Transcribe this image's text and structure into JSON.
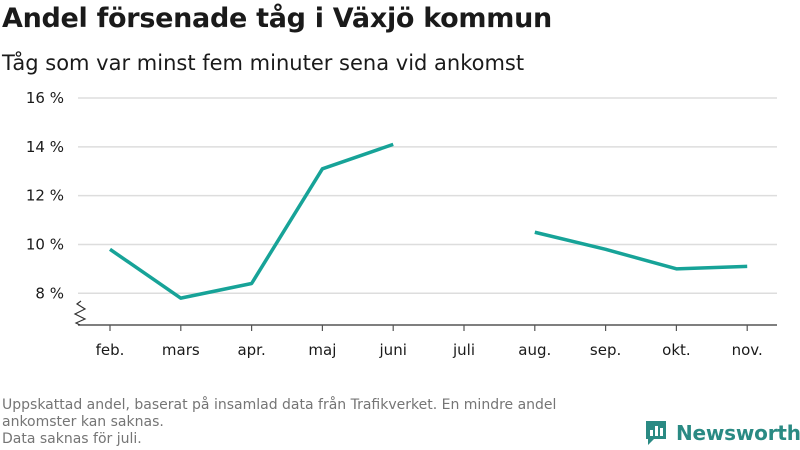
{
  "title": "Andel försenade tåg i Växjö kommun",
  "subtitle": "Tåg som var minst fem minuter sena vid ankomst",
  "footnote": {
    "line1": "Uppskattad andel, baserat på insamlad data från Trafikverket. En mindre andel",
    "line2": "ankomster kan saknas.",
    "line3": "Data saknas för juli."
  },
  "brand": {
    "name": "Newsworthy",
    "icon": "newsworthy-logo-icon",
    "color": "#2a8a83"
  },
  "chart_data": {
    "type": "line",
    "title": "Andel försenade tåg i Växjö kommun",
    "subtitle": "Tåg som var minst fem minuter sena vid ankomst",
    "categories": [
      "feb.",
      "mars",
      "apr.",
      "maj",
      "juni",
      "juli",
      "aug.",
      "sep.",
      "okt.",
      "nov."
    ],
    "series": [
      {
        "values": [
          9.8,
          7.8,
          8.4,
          13.1,
          14.1,
          null,
          10.5,
          9.8,
          9.0,
          9.1
        ],
        "color": "#17a398"
      }
    ],
    "yticks": [
      8,
      10,
      12,
      14,
      16
    ],
    "ytick_labels": [
      "8 %",
      "10 %",
      "12 %",
      "14 %",
      "16 %"
    ],
    "ylim": [
      6.7,
      16
    ],
    "y_axis_break": true,
    "grid": true,
    "xlabel": "",
    "ylabel": ""
  }
}
